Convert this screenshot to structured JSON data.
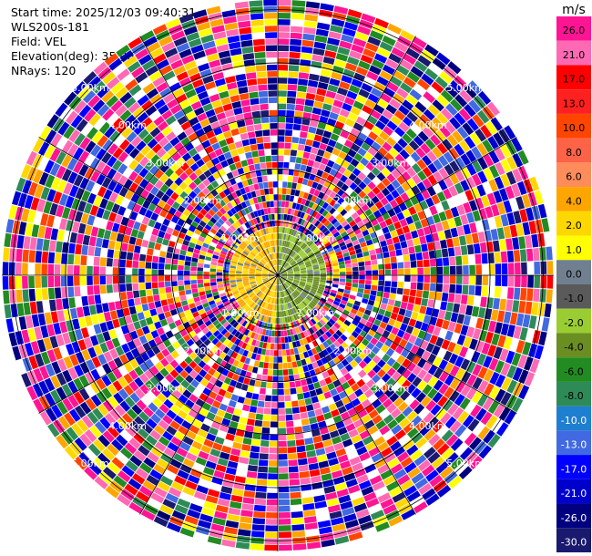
{
  "header": {
    "start_time": "Start time: 2025/12/03 09:40:31",
    "station": "WLS200s-181",
    "field": "Field: VEL",
    "elevation": "Elevation(deg): 35.00",
    "nrays": "NRays: 120"
  },
  "colorbar": {
    "unit": "m/s",
    "ticks": [
      "26.0",
      "21.0",
      "17.0",
      "13.0",
      "10.0",
      "8.0",
      "6.0",
      "4.0",
      "2.0",
      "1.0",
      "0.0",
      "-1.0",
      "-2.0",
      "-4.0",
      "-6.0",
      "-8.0",
      "-10.0",
      "-13.0",
      "-17.0",
      "-21.0",
      "-26.0",
      "-30.0"
    ],
    "colors": [
      "#ff1493",
      "#ff69b4",
      "#ff0000",
      "#ff2020",
      "#ff4500",
      "#ff6347",
      "#ff8c5a",
      "#ffa500",
      "#ffd700",
      "#ffff00",
      "#708090",
      "#5a5a5a",
      "#9acd32",
      "#6b8e23",
      "#228b22",
      "#2e8b57",
      "#1e7fd0",
      "#4169e1",
      "#0000ff",
      "#0000cd",
      "#000080",
      "#191970"
    ]
  },
  "chart_data": {
    "type": "heatmap",
    "projection": "polar PPI",
    "field": "VEL",
    "elevation_deg": 35.0,
    "nrays": 120,
    "range_ring_labels": [
      "1.00km",
      "2.00km",
      "3.00km",
      "4.00km",
      "5.00km"
    ],
    "range_rings_km": [
      1,
      2,
      3,
      4,
      5
    ],
    "max_range_km": 5.2,
    "value_range": [
      -30,
      26
    ],
    "unit": "m/s"
  }
}
